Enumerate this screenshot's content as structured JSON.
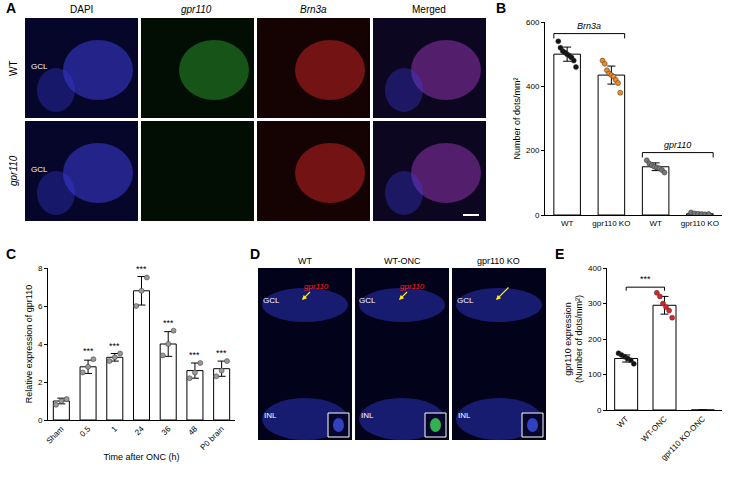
{
  "chart_data": [
    {
      "type": "bar",
      "ylabel": "Number of dots/mm²",
      "categories": [
        "WT",
        "gpr110 KO",
        "WT",
        "gpr110 KO"
      ],
      "values": [
        500,
        435,
        150,
        4
      ],
      "errors": [
        22,
        28,
        12,
        2
      ],
      "points": [
        [
          540,
          520,
          510,
          505,
          500,
          495,
          490,
          480,
          460
        ],
        [
          480,
          470,
          450,
          440,
          435,
          430,
          420,
          410,
          380
        ],
        [
          170,
          160,
          155,
          150,
          148,
          145,
          140,
          132
        ],
        [
          8,
          5,
          4,
          3,
          2,
          3
        ]
      ],
      "colors": [
        "#111111",
        "#f08a24",
        "#777777",
        "#777777"
      ],
      "marker": "circle",
      "groups": [
        {
          "label": "Brn3a",
          "span": [
            0,
            1
          ]
        },
        {
          "label": "gpr110",
          "span": [
            2,
            3
          ]
        }
      ],
      "ylim": [
        0,
        600
      ],
      "yticks": [
        0,
        200,
        400,
        600
      ],
      "grid": false
    },
    {
      "type": "bar",
      "ylabel": "Relative expression of gpr110",
      "xlabel": "Time after ONC (h)",
      "categories": [
        "Sham",
        "0.5",
        "1",
        "24",
        "36",
        "48",
        "P0 brain"
      ],
      "values": [
        1.0,
        2.8,
        3.3,
        6.8,
        4.0,
        2.6,
        2.7
      ],
      "errors": [
        0.15,
        0.35,
        0.2,
        0.75,
        0.65,
        0.4,
        0.4
      ],
      "points": [
        [
          0.8,
          1.0,
          1.1
        ],
        [
          2.5,
          2.8,
          3.2
        ],
        [
          3.1,
          3.3,
          3.5
        ],
        [
          6.0,
          6.8,
          7.5
        ],
        [
          3.4,
          4.0,
          4.7
        ],
        [
          2.2,
          2.5,
          3.0
        ],
        [
          2.3,
          2.6,
          3.1
        ]
      ],
      "colors": [
        "#999999",
        "#999999",
        "#999999",
        "#999999",
        "#999999",
        "#999999",
        "#999999"
      ],
      "marker": "circle",
      "significance": [
        null,
        "***",
        "***",
        "***",
        "***",
        "***",
        "***"
      ],
      "ylim": [
        0,
        8
      ],
      "yticks": [
        0,
        2,
        4,
        6,
        8
      ],
      "grid": false
    },
    {
      "type": "bar",
      "ylabel": [
        "gpr110 expression",
        "(Number of dots/mm²)"
      ],
      "categories": [
        "WT",
        "WT-ONC",
        "gpr110 KO-ONC"
      ],
      "values": [
        145,
        295,
        0
      ],
      "errors": [
        10,
        25,
        0
      ],
      "points": [
        [
          160,
          155,
          150,
          145,
          140,
          130
        ],
        [
          330,
          320,
          300,
          290,
          280,
          260
        ],
        []
      ],
      "colors": [
        "#111111",
        "#e0202a",
        "#111111"
      ],
      "marker": "circle",
      "comparisons": [
        {
          "label": "***",
          "between": [
            0,
            1
          ]
        }
      ],
      "ylim": [
        0,
        400
      ],
      "yticks": [
        0,
        100,
        200,
        300,
        400
      ],
      "grid": false
    }
  ],
  "figure": {
    "panel_labels": [
      "A",
      "B",
      "C",
      "D",
      "E"
    ],
    "panel_A": {
      "columns": [
        "DAPI",
        "gpr110",
        "Brn3a",
        "Merged"
      ],
      "rows": [
        "WT",
        "gpr110"
      ],
      "layer_labels": [
        "GCL",
        "GCL"
      ]
    },
    "panel_D": {
      "columns": [
        "WT",
        "WT-ONC",
        "gpr110 KO"
      ],
      "layers": [
        "GCL",
        "INL"
      ],
      "arrow_labels": [
        "gpr110",
        "gpr110",
        null
      ]
    }
  }
}
